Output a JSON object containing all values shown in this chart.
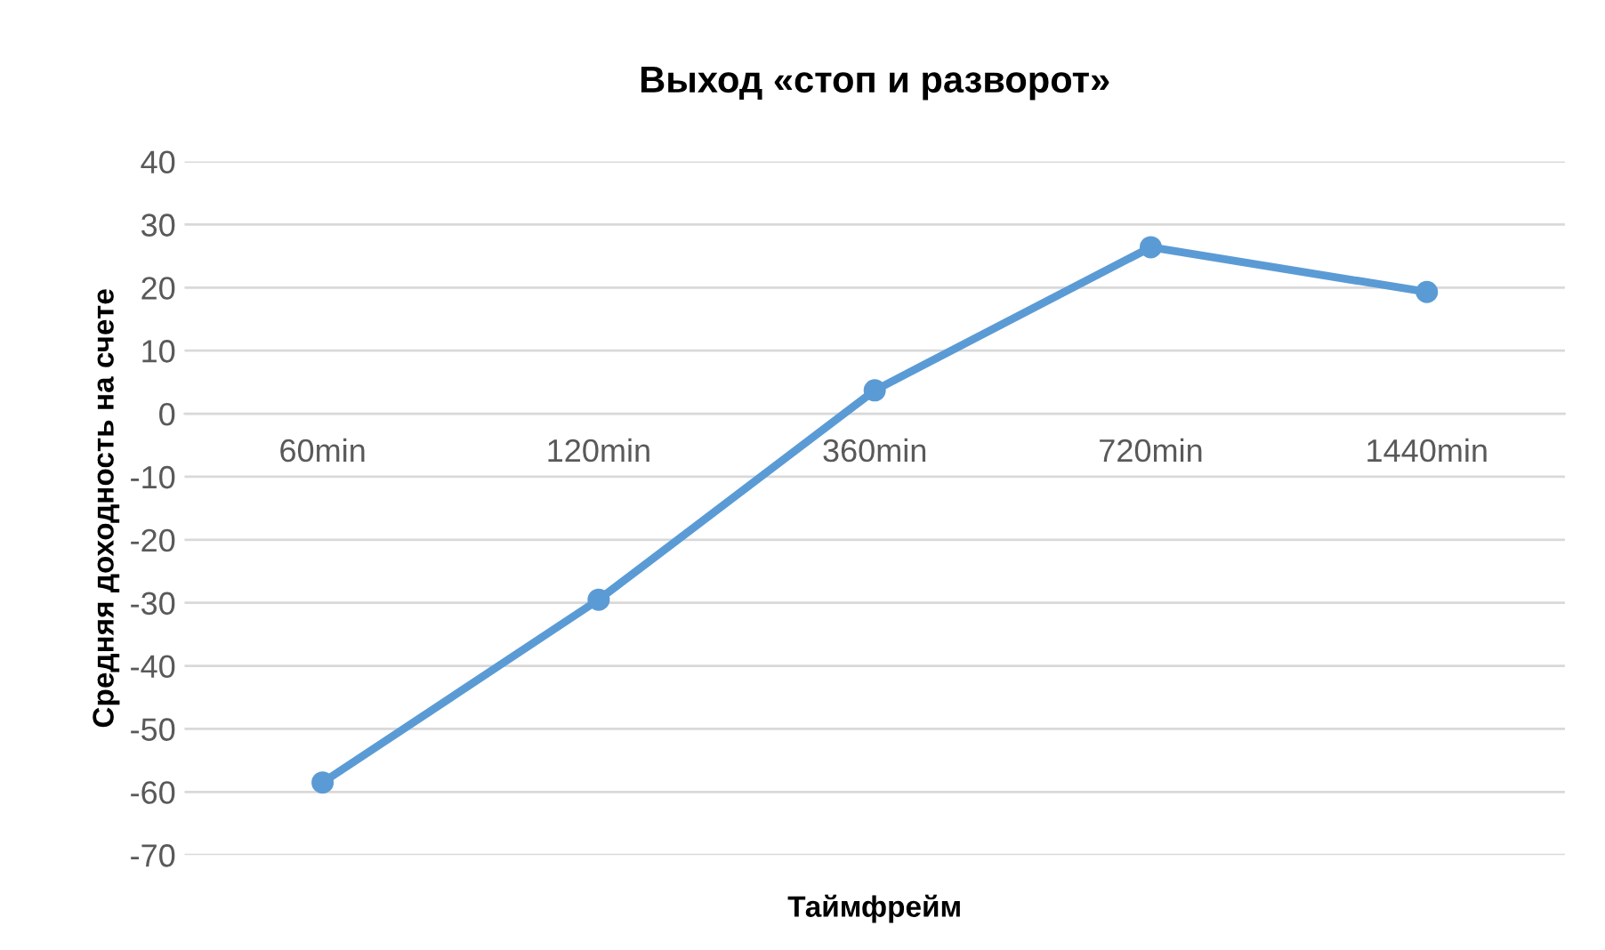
{
  "chart_data": {
    "type": "line",
    "title": "Выход «стоп и разворот»",
    "xlabel": "Таймфрейм",
    "ylabel": "Средняя доходность на счете",
    "categories": [
      "60min",
      "120min",
      "360min",
      "720min",
      "1440min"
    ],
    "series": [
      {
        "color": "#5b9bd5",
        "values": [
          -58.5,
          -29.5,
          3.7,
          26.4,
          19.3
        ]
      }
    ],
    "ylim": [
      -70,
      40
    ],
    "yticks": [
      -70,
      -60,
      -50,
      -40,
      -30,
      -20,
      -10,
      0,
      10,
      20,
      30,
      40
    ],
    "grid": "y",
    "marker": "circle",
    "line_style": "solid",
    "legend": false
  }
}
